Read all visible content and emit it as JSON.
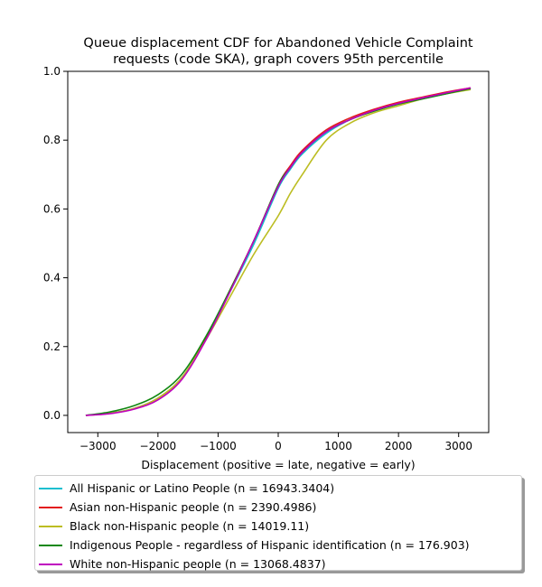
{
  "chart_data": {
    "type": "line",
    "title": "Queue displacement CDF for Abandoned Vehicle Complaint requests (code SKA), graph covers 95th percentile",
    "title_lines": [
      "Queue displacement CDF for Abandoned Vehicle Complaint",
      "requests (code SKA), graph covers 95th percentile"
    ],
    "xlabel": "Displacement (positive = late, negative = early)",
    "ylabel": "",
    "xlim": [
      -3500,
      3500
    ],
    "ylim": [
      -0.05,
      1.0
    ],
    "xticks": [
      -3000,
      -2000,
      -1000,
      0,
      1000,
      2000,
      3000
    ],
    "yticks": [
      0.0,
      0.2,
      0.4,
      0.6,
      0.8,
      1.0
    ],
    "grid": false,
    "legend_position": "below",
    "x": [
      -3200,
      -2800,
      -2400,
      -2000,
      -1600,
      -1200,
      -800,
      -400,
      0,
      200,
      400,
      800,
      1200,
      1600,
      2000,
      2400,
      2800,
      3200
    ],
    "series": [
      {
        "name": "All Hispanic or Latino People (n = 16943.3404)",
        "color": "#17becf",
        "values": [
          0.0,
          0.007,
          0.02,
          0.05,
          0.11,
          0.225,
          0.36,
          0.5,
          0.66,
          0.715,
          0.76,
          0.82,
          0.86,
          0.885,
          0.905,
          0.92,
          0.935,
          0.95
        ]
      },
      {
        "name": "Asian non-Hispanic people (n = 2390.4986)",
        "color": "#e31a1c",
        "values": [
          0.0,
          0.006,
          0.02,
          0.05,
          0.11,
          0.225,
          0.365,
          0.51,
          0.67,
          0.725,
          0.77,
          0.83,
          0.865,
          0.89,
          0.91,
          0.925,
          0.94,
          0.952
        ]
      },
      {
        "name": "Black non-Hispanic people (n = 14019.11)",
        "color": "#bcbd22",
        "values": [
          0.0,
          0.006,
          0.02,
          0.05,
          0.11,
          0.22,
          0.345,
          0.47,
          0.58,
          0.645,
          0.7,
          0.8,
          0.85,
          0.88,
          0.9,
          0.92,
          0.935,
          0.947
        ]
      },
      {
        "name": "Indigenous People - regardless of Hispanic identification (n = 176.903)",
        "color": "#118811",
        "values": [
          0.0,
          0.01,
          0.028,
          0.06,
          0.12,
          0.23,
          0.365,
          0.51,
          0.67,
          0.72,
          0.765,
          0.825,
          0.86,
          0.885,
          0.905,
          0.92,
          0.935,
          0.95
        ]
      },
      {
        "name": "White non-Hispanic people (n = 13068.4837)",
        "color": "#bf00bf",
        "values": [
          0.0,
          0.005,
          0.018,
          0.045,
          0.105,
          0.22,
          0.36,
          0.51,
          0.665,
          0.72,
          0.765,
          0.825,
          0.86,
          0.887,
          0.907,
          0.923,
          0.938,
          0.952
        ]
      }
    ]
  }
}
